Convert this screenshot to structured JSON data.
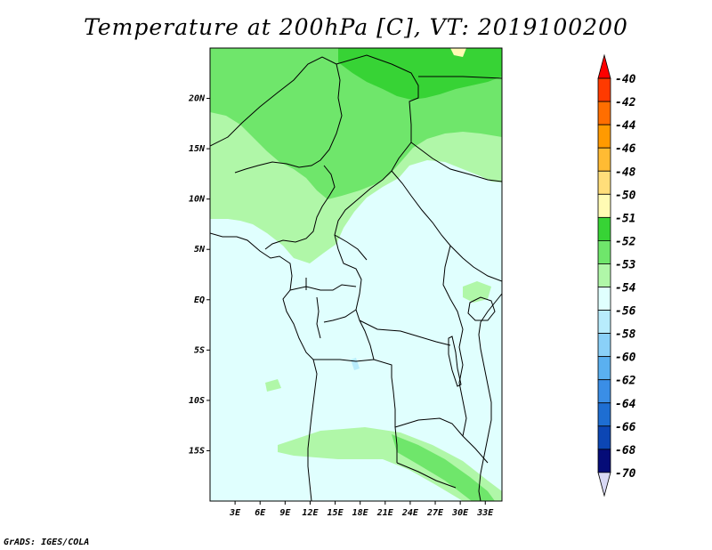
{
  "title": "Temperature at 200hPa [C], VT: 2019100200",
  "credit": "GrADS: IGES/COLA",
  "map": {
    "lon_labels": [
      "3E",
      "6E",
      "9E",
      "12E",
      "15E",
      "18E",
      "21E",
      "24E",
      "27E",
      "30E",
      "33E"
    ],
    "lat_labels": [
      "20N",
      "15N",
      "10N",
      "5N",
      "EQ",
      "5S",
      "10S",
      "15S"
    ],
    "lon_values": [
      3,
      6,
      9,
      12,
      15,
      18,
      21,
      24,
      27,
      30,
      33
    ],
    "lat_values": [
      20,
      15,
      10,
      5,
      0,
      -5,
      -10,
      -15
    ],
    "lon_range": [
      0,
      35
    ],
    "lat_range": [
      -20,
      25
    ],
    "dominant_fill_color": "#e0fffe"
  },
  "legend": {
    "labels": [
      "-40",
      "-42",
      "-44",
      "-46",
      "-48",
      "-50",
      "-51",
      "-52",
      "-53",
      "-54",
      "-56",
      "-58",
      "-60",
      "-62",
      "-64",
      "-66",
      "-68",
      "-70"
    ],
    "colors": [
      "#ff0000",
      "#ff3a00",
      "#ff6e00",
      "#ff9a00",
      "#ffbb33",
      "#ffde7a",
      "#fffbb4",
      "#37d335",
      "#6fe66b",
      "#b0f7a8",
      "#e0fffe",
      "#b8ecfc",
      "#8ad0f8",
      "#5ab0f0",
      "#3a8ee6",
      "#1e6ed2",
      "#0c46b4",
      "#050c78",
      "#d8d8f4"
    ]
  }
}
